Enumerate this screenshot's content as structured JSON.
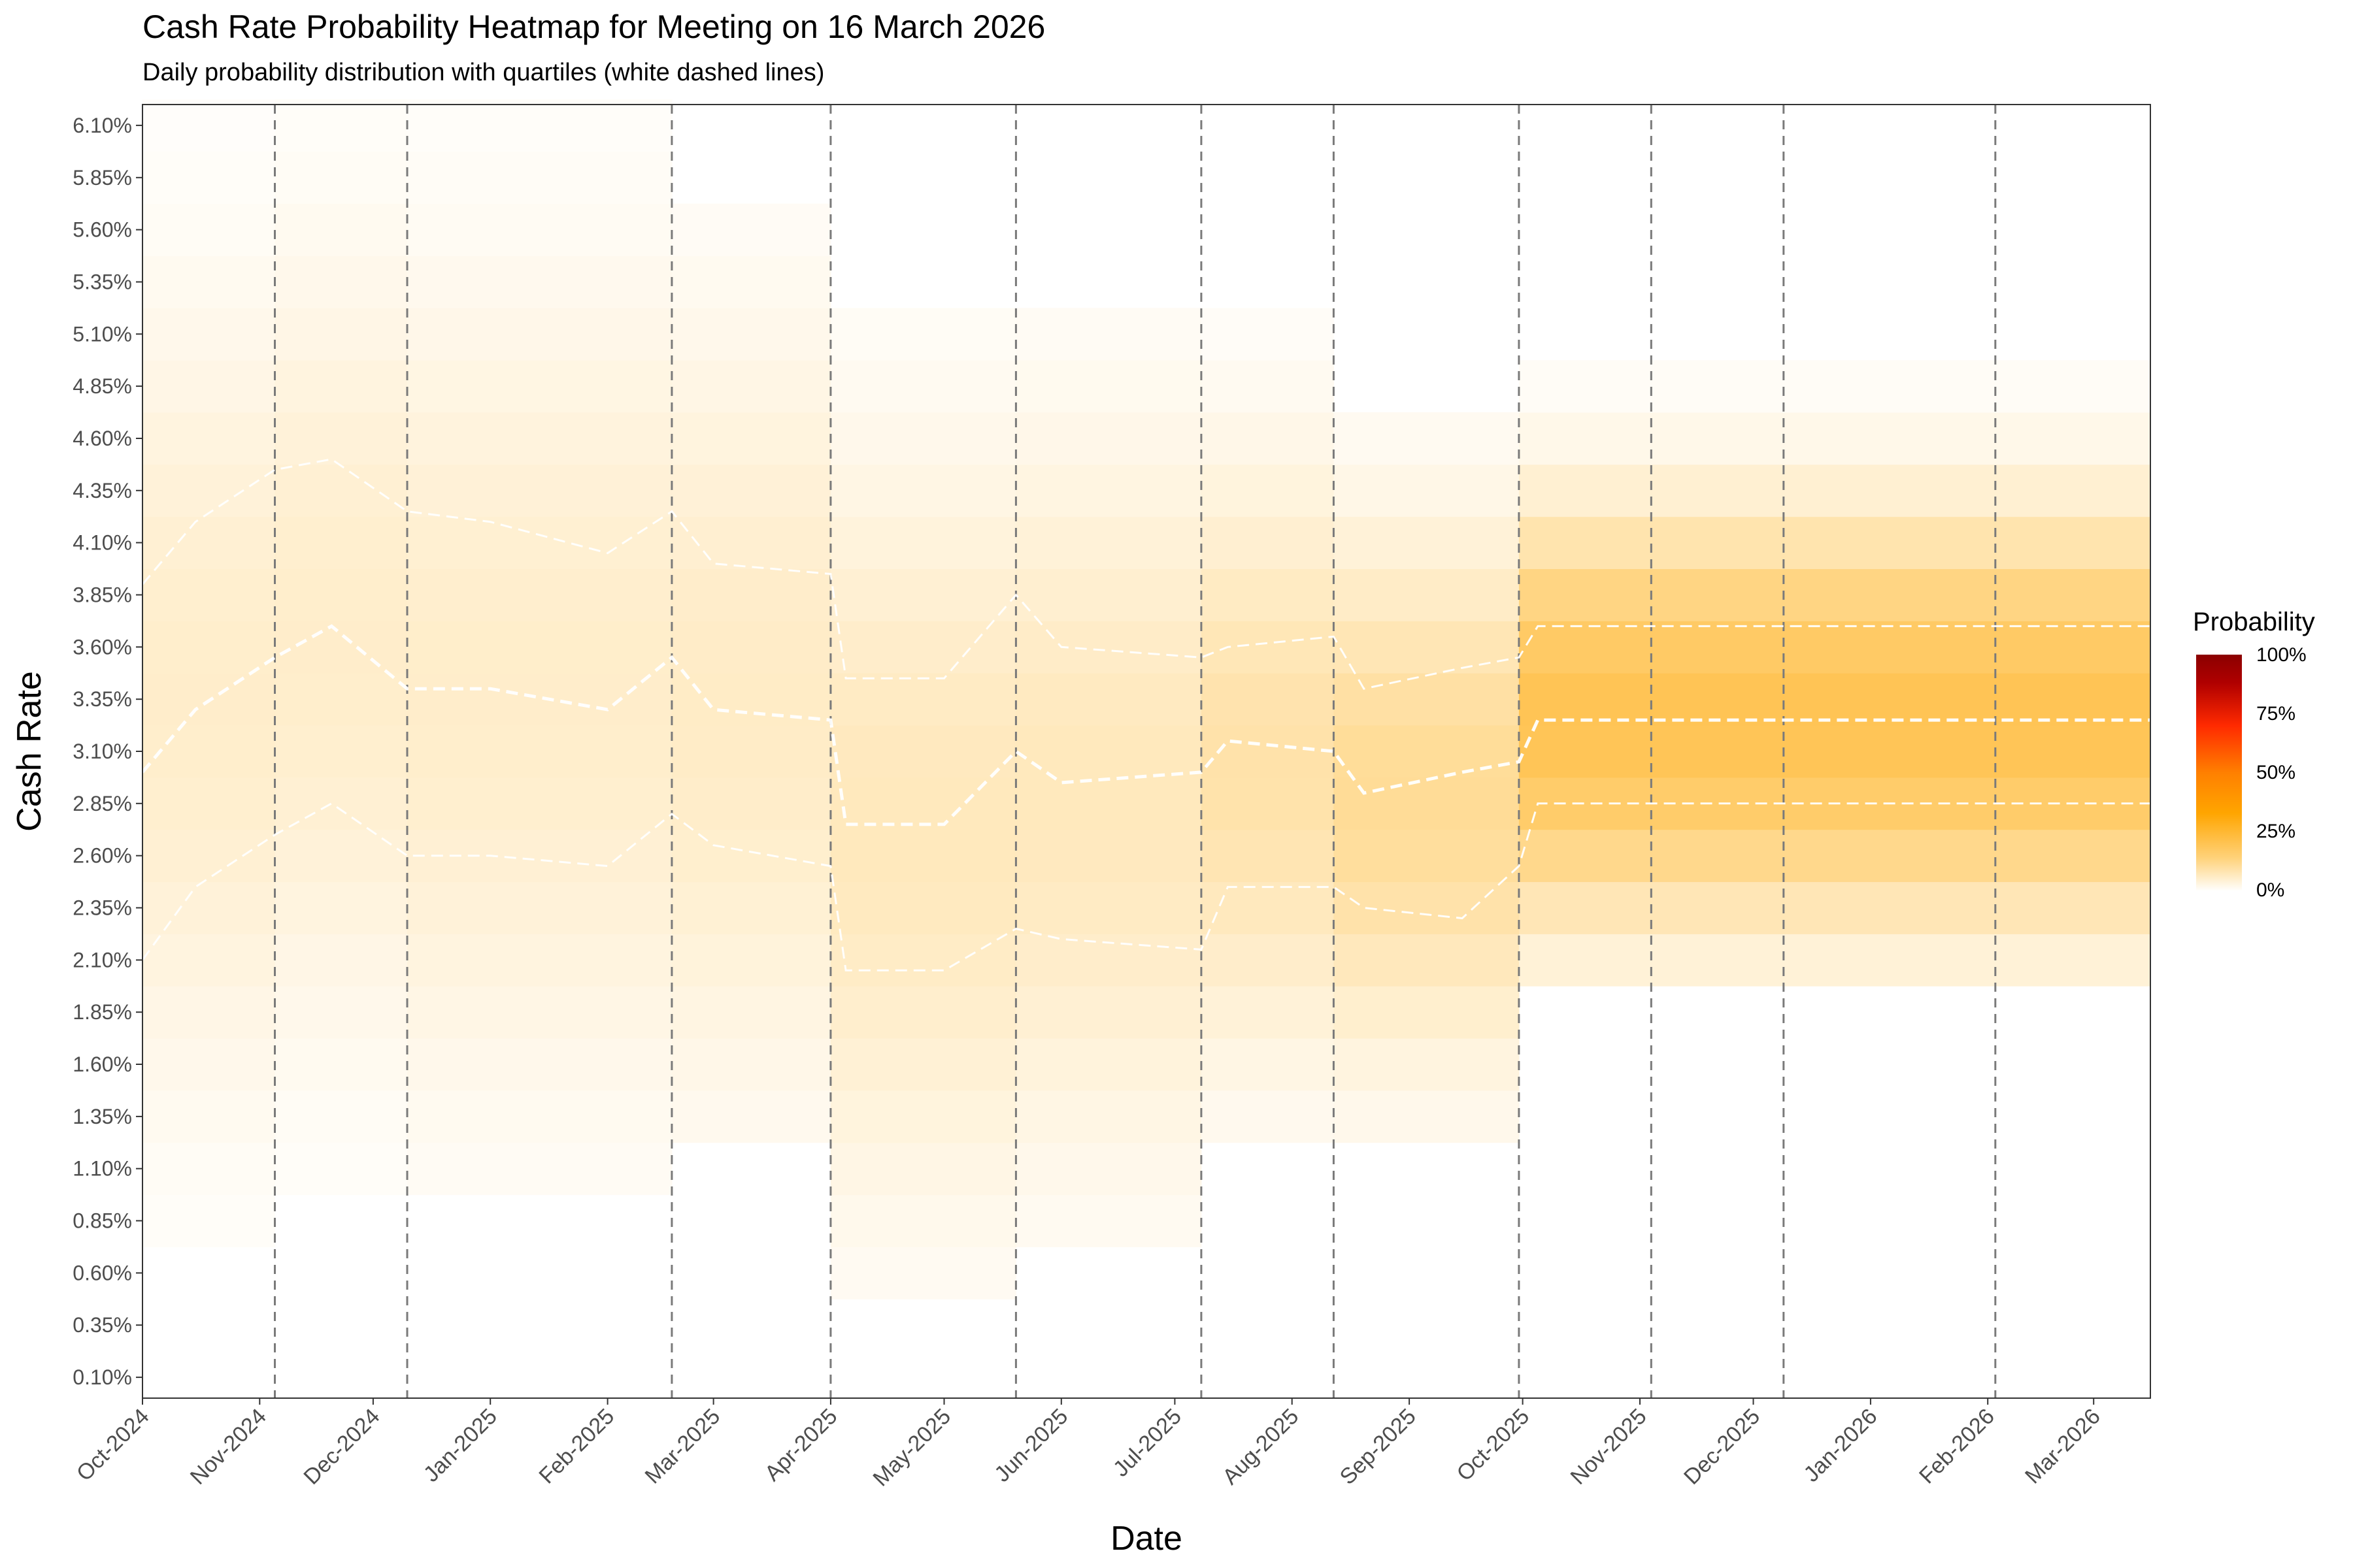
{
  "chart_data": {
    "type": "heatmap",
    "title": "Cash Rate Probability Heatmap for Meeting on 16 March 2026",
    "subtitle": "Daily probability distribution with quartiles (white dashed lines)",
    "xlabel": "Date",
    "ylabel": "Cash Rate",
    "x_ticks": [
      "Oct-2024",
      "Nov-2024",
      "Dec-2024",
      "Jan-2025",
      "Feb-2025",
      "Mar-2025",
      "Apr-2025",
      "May-2025",
      "Jun-2025",
      "Jul-2025",
      "Aug-2025",
      "Sep-2025",
      "Oct-2025",
      "Nov-2025",
      "Dec-2025",
      "Jan-2026",
      "Feb-2026",
      "Mar-2026"
    ],
    "x_range": [
      "2024-10-01",
      "2026-03-16"
    ],
    "y_ticks": [
      "0.10%",
      "0.35%",
      "0.60%",
      "0.85%",
      "1.10%",
      "1.35%",
      "1.60%",
      "1.85%",
      "2.10%",
      "2.35%",
      "2.60%",
      "2.85%",
      "3.10%",
      "3.35%",
      "3.60%",
      "3.85%",
      "4.10%",
      "4.35%",
      "4.60%",
      "4.85%",
      "5.10%",
      "5.35%",
      "5.60%",
      "5.85%",
      "6.10%"
    ],
    "y_range": [
      0.0,
      6.2
    ],
    "meeting_dates": [
      "2024-11-05",
      "2024-12-10",
      "2025-02-18",
      "2025-04-01",
      "2025-05-20",
      "2025-07-08",
      "2025-08-12",
      "2025-09-30",
      "2025-11-04",
      "2025-12-09",
      "2026-02-03"
    ],
    "legend": {
      "title": "Probability",
      "labels": [
        "100%",
        "75%",
        "50%",
        "25%",
        "0%"
      ],
      "values": [
        1.0,
        0.75,
        0.5,
        0.25,
        0.0
      ],
      "placement": "right"
    },
    "colors": {
      "low": "#ffffff",
      "mid": "#ffa500",
      "high": "#8b0000",
      "quartile_line": "#ffffff",
      "meeting_line": "#7a7a7a"
    },
    "periods": [
      {
        "start": "2024-10-01",
        "end": "2024-11-05",
        "center": 3.35,
        "spread": 1.25,
        "min": 0.85,
        "max": 6.1,
        "peak": 0.055
      },
      {
        "start": "2024-11-05",
        "end": "2024-12-10",
        "center": 3.6,
        "spread": 1.25,
        "min": 1.1,
        "max": 6.1,
        "peak": 0.055
      },
      {
        "start": "2024-12-10",
        "end": "2025-02-18",
        "center": 3.4,
        "spread": 1.3,
        "min": 1.1,
        "max": 6.1,
        "peak": 0.055
      },
      {
        "start": "2025-02-18",
        "end": "2025-04-01",
        "center": 3.3,
        "spread": 1.25,
        "min": 1.35,
        "max": 5.6,
        "peak": 0.06
      },
      {
        "start": "2025-04-01",
        "end": "2025-05-20",
        "center": 2.75,
        "spread": 1.2,
        "min": 0.6,
        "max": 5.1,
        "peak": 0.07
      },
      {
        "start": "2025-05-20",
        "end": "2025-07-08",
        "center": 2.9,
        "spread": 1.15,
        "min": 0.85,
        "max": 5.1,
        "peak": 0.07
      },
      {
        "start": "2025-07-08",
        "end": "2025-08-12",
        "center": 3.05,
        "spread": 0.95,
        "min": 1.35,
        "max": 5.1,
        "peak": 0.09
      },
      {
        "start": "2025-08-12",
        "end": "2025-09-30",
        "center": 2.9,
        "spread": 0.85,
        "min": 1.35,
        "max": 4.6,
        "peak": 0.11
      },
      {
        "start": "2025-09-30",
        "end": "2026-03-16",
        "center": 3.25,
        "spread": 0.65,
        "min": 2.1,
        "max": 4.85,
        "peak": 0.2
      }
    ],
    "quartiles": {
      "dates": [
        "2024-10-01",
        "2024-10-15",
        "2024-11-05",
        "2024-11-20",
        "2024-12-10",
        "2025-01-01",
        "2025-02-01",
        "2025-02-18",
        "2025-03-01",
        "2025-04-01",
        "2025-04-05",
        "2025-05-01",
        "2025-05-20",
        "2025-06-01",
        "2025-07-08",
        "2025-07-15",
        "2025-08-12",
        "2025-08-20",
        "2025-09-15",
        "2025-09-30",
        "2025-10-05",
        "2026-03-16"
      ],
      "q1": [
        2.1,
        2.45,
        2.7,
        2.85,
        2.6,
        2.6,
        2.55,
        2.8,
        2.65,
        2.55,
        2.05,
        2.05,
        2.25,
        2.2,
        2.15,
        2.45,
        2.45,
        2.35,
        2.3,
        2.55,
        2.85,
        2.85
      ],
      "median": [
        3.0,
        3.3,
        3.55,
        3.7,
        3.4,
        3.4,
        3.3,
        3.55,
        3.3,
        3.25,
        2.75,
        2.75,
        3.1,
        2.95,
        3.0,
        3.15,
        3.1,
        2.9,
        3.0,
        3.05,
        3.25,
        3.25
      ],
      "q3": [
        3.9,
        4.2,
        4.45,
        4.5,
        4.25,
        4.2,
        4.05,
        4.25,
        4.0,
        3.95,
        3.45,
        3.45,
        3.85,
        3.6,
        3.55,
        3.6,
        3.65,
        3.4,
        3.5,
        3.55,
        3.7,
        3.7
      ]
    }
  }
}
